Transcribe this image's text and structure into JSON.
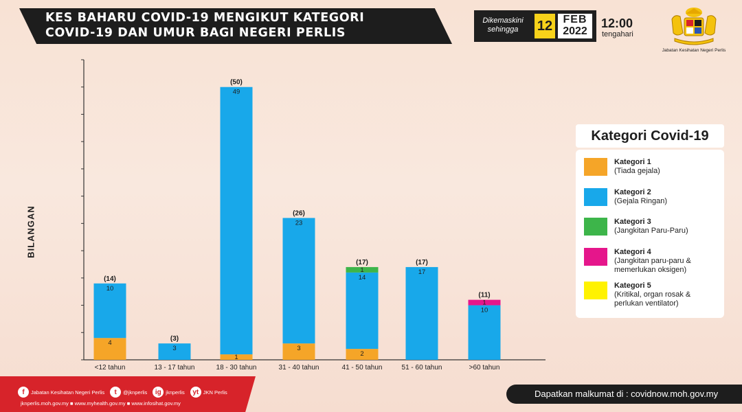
{
  "title": {
    "line1": "KES BAHARU COVID-19 MENGIKUT KATEGORI",
    "line2": "COVID-19 DAN UMUR BAGI NEGERI PERLIS"
  },
  "update": {
    "label_line1": "Dikemaskini",
    "label_line2": "sehingga",
    "day": "12",
    "month": "FEB",
    "year": "2022",
    "time": "12:00",
    "time_note": "tengahari"
  },
  "logo": {
    "caption": "Jabatan Kesihatan Negeri Perlis"
  },
  "legend": {
    "title": "Kategori Covid-19",
    "items": [
      {
        "name": "Kategori 1",
        "desc": "(Tiada gejala)",
        "color": "#f5a528"
      },
      {
        "name": "Kategori 2",
        "desc": "(Gejala Ringan)",
        "color": "#18a8ea"
      },
      {
        "name": "Kategori 3",
        "desc": "(Jangkitan Paru-Paru)",
        "color": "#3db54a"
      },
      {
        "name": "Kategori 4",
        "desc": "(Jangkitan paru-paru & memerlukan oksigen)",
        "color": "#e5168b"
      },
      {
        "name": "Kategori 5",
        "desc": "(Kritikal, organ rosak & perlukan ventilator)",
        "color": "#fff200"
      }
    ]
  },
  "chart_data": {
    "type": "bar",
    "stacked": true,
    "ylabel": "BILANGAN",
    "ylim": [
      0,
      55
    ],
    "categories": [
      "<12 tahun",
      "13 - 17 tahun",
      "18 - 30 tahun",
      "31 - 40 tahun",
      "41 - 50 tahun",
      "51 - 60 tahun",
      ">60 tahun"
    ],
    "totals": [
      14,
      3,
      50,
      26,
      17,
      17,
      11
    ],
    "series": [
      {
        "name": "Kategori 1",
        "color": "#f5a528",
        "values": [
          4,
          0,
          1,
          3,
          2,
          0,
          0
        ]
      },
      {
        "name": "Kategori 2",
        "color": "#18a8ea",
        "values": [
          10,
          3,
          49,
          23,
          14,
          17,
          10
        ]
      },
      {
        "name": "Kategori 3",
        "color": "#3db54a",
        "values": [
          0,
          0,
          0,
          0,
          1,
          0,
          0
        ]
      },
      {
        "name": "Kategori 4",
        "color": "#e5168b",
        "values": [
          0,
          0,
          0,
          0,
          0,
          0,
          1
        ]
      },
      {
        "name": "Kategori 5",
        "color": "#fff200",
        "values": [
          0,
          0,
          0,
          0,
          0,
          0,
          0
        ]
      }
    ]
  },
  "footer": {
    "social": [
      {
        "icon": "f",
        "label": "Jabatan Kesihatan Negeri Perlis"
      },
      {
        "icon": "t",
        "label": "@jknperlis"
      },
      {
        "icon": "ig",
        "label": "jknperlis"
      },
      {
        "icon": "yt",
        "label": "JKN Perlis"
      }
    ],
    "websites": "jknperlis.moh.gov.my ■ www.myhealth.gov.my ■ www.infosihat.gov.my",
    "cta": "Dapatkan malkumat di : covidnow.moh.gov.my"
  }
}
